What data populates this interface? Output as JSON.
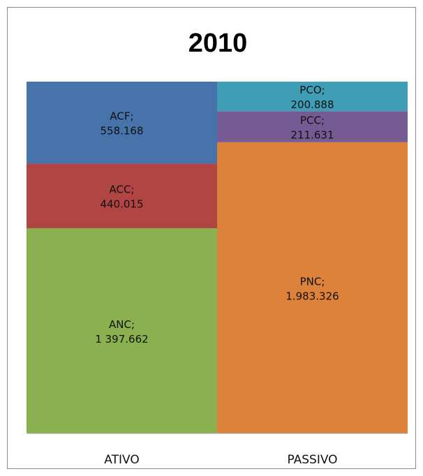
{
  "chart_data": {
    "type": "bar",
    "stacked": true,
    "title": "2010",
    "categories": [
      "ATIVO",
      "PASSIVO"
    ],
    "series": [
      {
        "category": "ATIVO",
        "segments": [
          {
            "name": "ANC",
            "label": "ANC;",
            "value": 1397662,
            "value_label": "1 397.662",
            "color": "#8bb04f"
          },
          {
            "name": "ACC",
            "label": "ACC;",
            "value": 440015,
            "value_label": "440.015",
            "color": "#b14543"
          },
          {
            "name": "ACF",
            "label": "ACF;",
            "value": 558168,
            "value_label": "558.168",
            "color": "#4673aa"
          }
        ]
      },
      {
        "category": "PASSIVO",
        "segments": [
          {
            "name": "PNC",
            "label": "PNC;",
            "value": 1983326,
            "value_label": "1.983.326",
            "color": "#dd823b"
          },
          {
            "name": "PCC",
            "label": "PCC;",
            "value": 211631,
            "value_label": "211.631",
            "color": "#765a93"
          },
          {
            "name": "PCO",
            "label": "PCO;",
            "value": 200888,
            "value_label": "200.888",
            "color": "#3f9db5"
          }
        ]
      }
    ],
    "gridlines": false,
    "legend": "none"
  }
}
